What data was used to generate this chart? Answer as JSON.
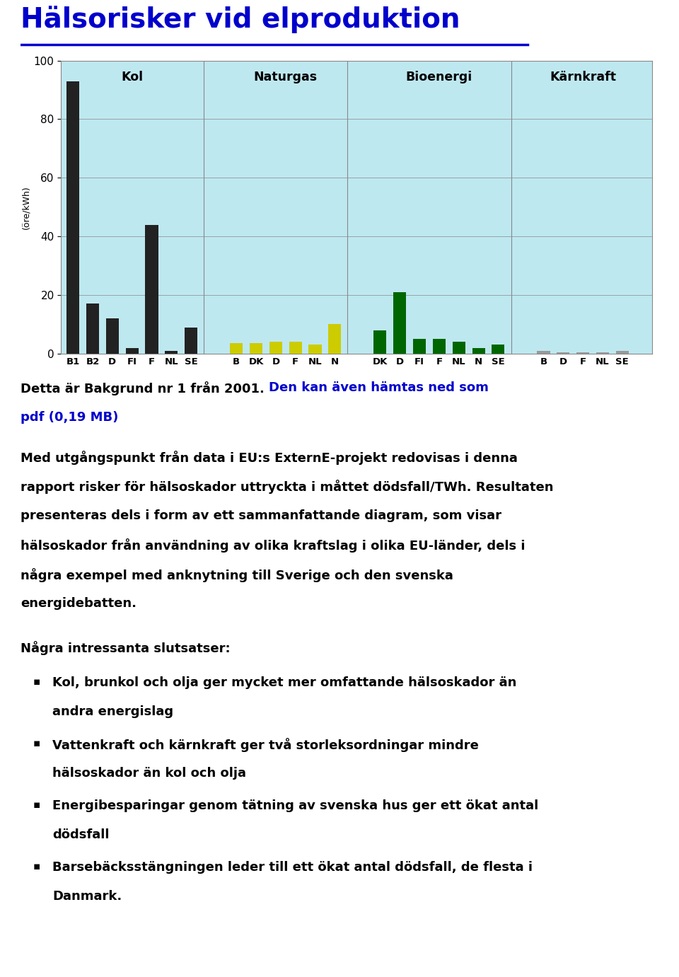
{
  "title": "Hälsorisker vid elproduktion",
  "title_color": "#0000CC",
  "chart_bg": "#BEE8F0",
  "ylabel": "(öre/kWh)",
  "ylim": [
    0,
    100
  ],
  "yticks": [
    0,
    20,
    40,
    60,
    80,
    100
  ],
  "groups": [
    {
      "name": "Kol",
      "color": "#222222",
      "bars": [
        {
          "label": "B1",
          "value": 93
        },
        {
          "label": "B2",
          "value": 17
        },
        {
          "label": "D",
          "value": 12
        },
        {
          "label": "FI",
          "value": 2
        },
        {
          "label": "F",
          "value": 44
        },
        {
          "label": "NL",
          "value": 1
        },
        {
          "label": "SE",
          "value": 9
        }
      ]
    },
    {
      "name": "Naturgas",
      "color": "#CCCC00",
      "bars": [
        {
          "label": "B",
          "value": 3.5
        },
        {
          "label": "DK",
          "value": 3.5
        },
        {
          "label": "D",
          "value": 4.0
        },
        {
          "label": "F",
          "value": 4.0
        },
        {
          "label": "NL",
          "value": 3.0
        },
        {
          "label": "N",
          "value": 10.0
        }
      ]
    },
    {
      "name": "Bioenergi",
      "color": "#006600",
      "bars": [
        {
          "label": "DK",
          "value": 8.0
        },
        {
          "label": "D",
          "value": 21.0
        },
        {
          "label": "FI",
          "value": 5.0
        },
        {
          "label": "F",
          "value": 5.0
        },
        {
          "label": "NL",
          "value": 4.0
        },
        {
          "label": "N",
          "value": 2.0
        },
        {
          "label": "SE",
          "value": 3.0
        }
      ]
    },
    {
      "name": "Kärnkraft",
      "color": "#999999",
      "bars": [
        {
          "label": "B",
          "value": 1.0
        },
        {
          "label": "D",
          "value": 0.5
        },
        {
          "label": "F",
          "value": 0.5
        },
        {
          "label": "NL",
          "value": 0.5
        },
        {
          "label": "SE",
          "value": 1.0
        }
      ]
    }
  ],
  "line1_normal": "Detta är Bakgrund nr 1 från 2001. ",
  "line1_link": "Den kan även hämtas ned som",
  "line2_link": "pdf (0,19 MB)",
  "paragraph_lines": [
    "Med utgångspunkt från data i EU:s ExternE-projekt redovisas i denna",
    "rapport risker för hälsoskador uttryckta i måttet dödsfall/TWh. Resultaten",
    "presenteras dels i form av ett sammanfattande diagram, som visar",
    "hälsoskador från användning av olika kraftslag i olika EU-länder, dels i",
    "några exempel med anknytning till Sverige och den svenska",
    "energidebatten."
  ],
  "heading": "Några intressanta slutsatser:",
  "bullets": [
    [
      "Kol, brunkol och olja ger mycket mer omfattande hälsoskador än",
      "andra energislag"
    ],
    [
      "Vattenkraft och kärnkraft ger två storleksordningar mindre",
      "hälsoskador än kol och olja"
    ],
    [
      "Energibesparingar genom tätning av svenska hus ger ett ökat antal",
      "dödsfall"
    ],
    [
      "Barsebäcksstängningen leder till ett ökat antal dödsfall, de flesta i",
      "Danmark."
    ]
  ]
}
